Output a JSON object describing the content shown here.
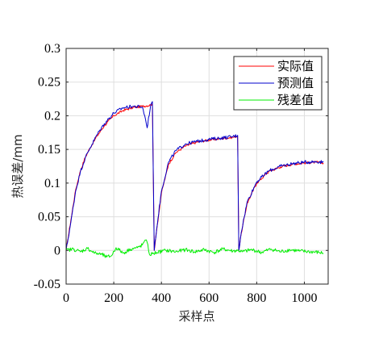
{
  "chart_data": {
    "type": "line",
    "xlabel": "采样点",
    "ylabel": "热误差/mm",
    "xlim": [
      0,
      1100
    ],
    "ylim": [
      -0.05,
      0.3
    ],
    "xticks": [
      0,
      200,
      400,
      600,
      800,
      1000
    ],
    "yticks": [
      -0.05,
      0,
      0.05,
      0.1,
      0.15,
      0.2,
      0.25,
      0.3
    ],
    "xtick_labels": [
      "0",
      "200",
      "400",
      "600",
      "800",
      "1000"
    ],
    "ytick_labels": [
      "-0.05",
      "0",
      "0.05",
      "0.1",
      "0.15",
      "0.2",
      "0.25",
      "0.3"
    ],
    "grid": true,
    "legend_position": "top-right",
    "series": [
      {
        "name": "实际值",
        "color": "#ff0000",
        "x": [
          0,
          20,
          40,
          60,
          80,
          100,
          130,
          160,
          200,
          240,
          280,
          320,
          355,
          362,
          370,
          380,
          400,
          430,
          460,
          500,
          550,
          600,
          650,
          700,
          720,
          725,
          735,
          760,
          800,
          850,
          900,
          950,
          1000,
          1050,
          1080
        ],
        "y": [
          0.0,
          0.045,
          0.09,
          0.118,
          0.138,
          0.152,
          0.17,
          0.185,
          0.2,
          0.208,
          0.212,
          0.214,
          0.216,
          0.218,
          0.0,
          0.03,
          0.085,
          0.128,
          0.145,
          0.155,
          0.161,
          0.164,
          0.166,
          0.168,
          0.17,
          0.0,
          0.025,
          0.07,
          0.1,
          0.117,
          0.124,
          0.128,
          0.13,
          0.131,
          0.13
        ]
      },
      {
        "name": "预测值",
        "color": "#0000cc",
        "x": [
          0,
          20,
          40,
          60,
          80,
          100,
          130,
          160,
          200,
          240,
          280,
          320,
          330,
          340,
          355,
          362,
          370,
          380,
          400,
          430,
          460,
          500,
          550,
          600,
          650,
          700,
          720,
          725,
          735,
          760,
          800,
          850,
          900,
          950,
          1000,
          1050,
          1080
        ],
        "y": [
          0.0,
          0.042,
          0.088,
          0.117,
          0.137,
          0.152,
          0.172,
          0.188,
          0.204,
          0.212,
          0.214,
          0.213,
          0.2,
          0.182,
          0.216,
          0.221,
          0.0,
          0.032,
          0.088,
          0.131,
          0.148,
          0.158,
          0.162,
          0.165,
          0.167,
          0.169,
          0.171,
          0.0,
          0.027,
          0.072,
          0.102,
          0.118,
          0.125,
          0.129,
          0.131,
          0.132,
          0.131
        ]
      },
      {
        "name": "残差值",
        "color": "#00ee00",
        "x": [
          0,
          30,
          60,
          90,
          120,
          150,
          170,
          190,
          210,
          240,
          270,
          300,
          320,
          330,
          340,
          350,
          362,
          380,
          420,
          460,
          500,
          540,
          580,
          620,
          660,
          700,
          720,
          740,
          780,
          820,
          860,
          900,
          940,
          980,
          1020,
          1060,
          1080
        ],
        "y": [
          0.0,
          0.002,
          -0.002,
          0.003,
          -0.004,
          -0.006,
          -0.01,
          -0.008,
          0.004,
          -0.004,
          0.002,
          0.004,
          0.008,
          0.015,
          0.012,
          -0.006,
          -0.005,
          -0.003,
          0.0,
          -0.002,
          0.001,
          -0.002,
          0.001,
          -0.003,
          0.002,
          -0.001,
          0.0,
          -0.002,
          0.001,
          -0.003,
          0.002,
          -0.002,
          0.001,
          -0.001,
          -0.002,
          -0.003,
          -0.004
        ]
      }
    ]
  }
}
